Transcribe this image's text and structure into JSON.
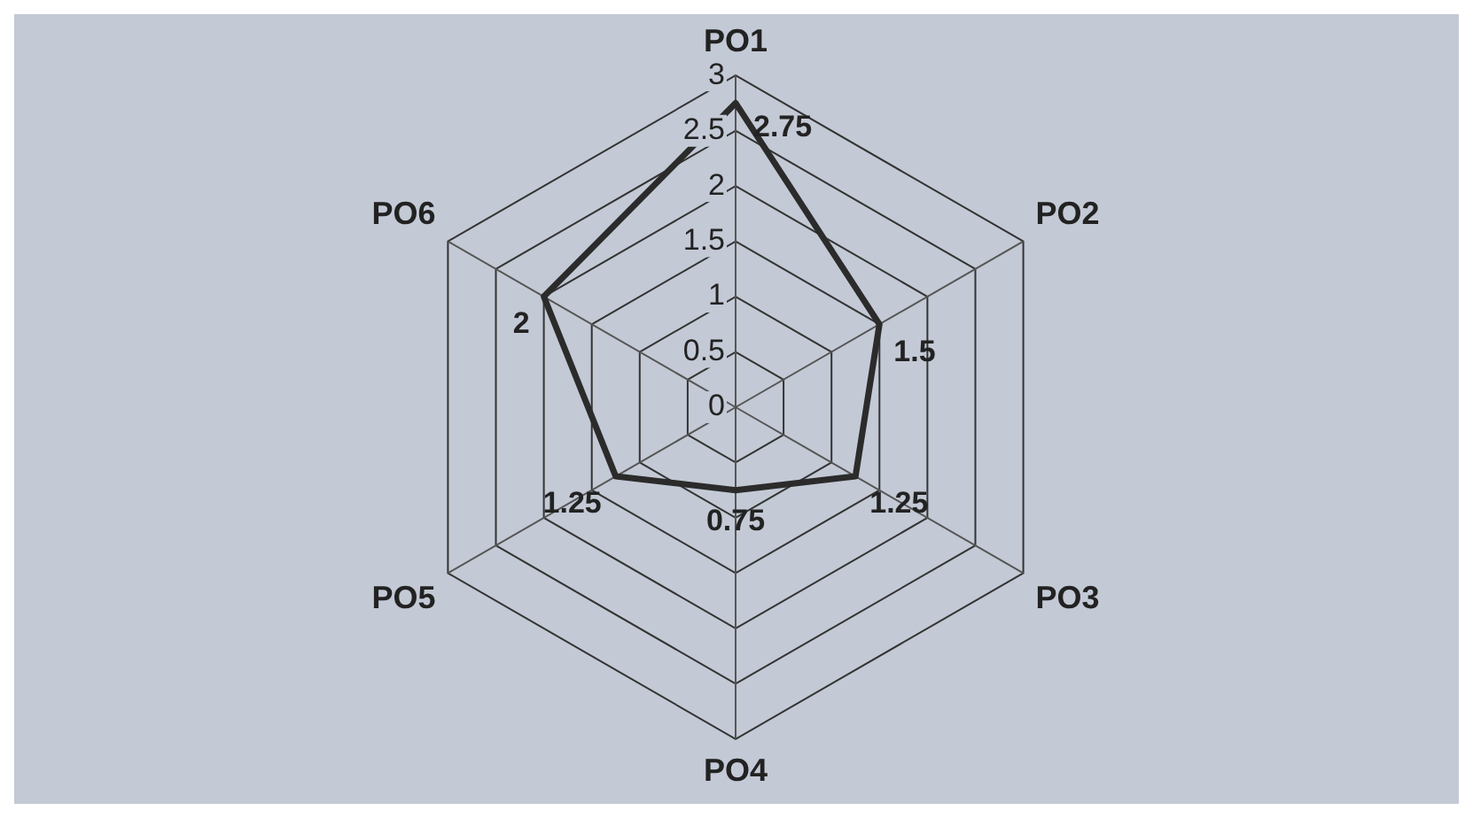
{
  "chart_data": {
    "type": "radar",
    "categories": [
      "PO1",
      "PO2",
      "PO3",
      "PO4",
      "PO5",
      "PO6"
    ],
    "series": [
      {
        "color": "#2b2b2b",
        "values": [
          2.75,
          1.5,
          1.25,
          0.75,
          1.25,
          2
        ]
      }
    ],
    "ylim": [
      0,
      3
    ],
    "yticks": [
      0,
      0.5,
      1,
      1.5,
      2,
      2.5,
      3
    ],
    "grid": true,
    "data_labels": true
  }
}
